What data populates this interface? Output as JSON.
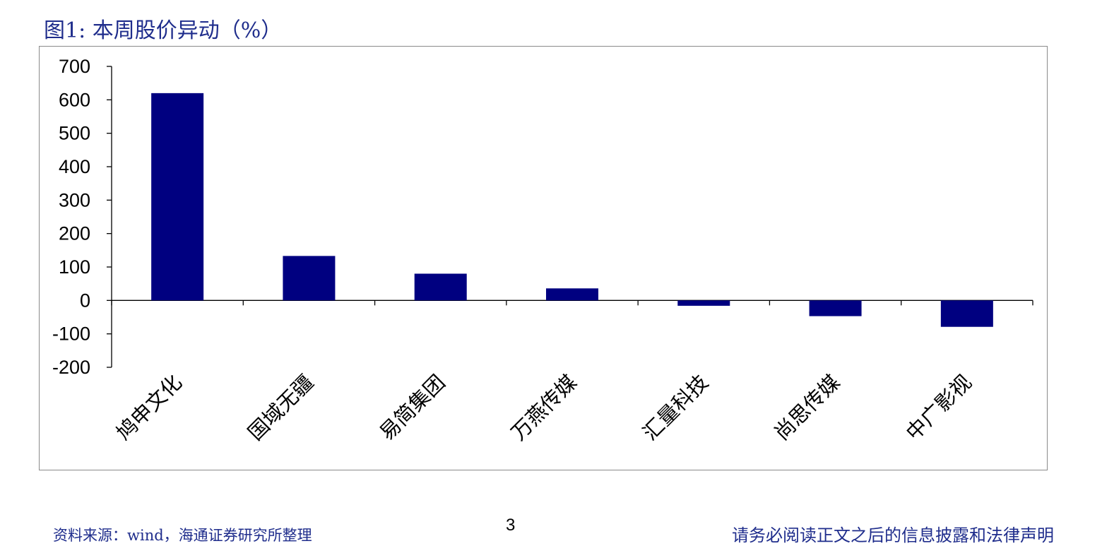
{
  "header": {
    "figure_title": "图1:  本周股价异动（%）"
  },
  "footer": {
    "source": "资料来源：wind，海通证券研究所整理",
    "page_number": "3",
    "disclaimer": "请务必阅读正文之后的信息披露和法律声明"
  },
  "chart_data": {
    "type": "bar",
    "title": "",
    "xlabel": "",
    "ylabel": "",
    "categories": [
      "鸠申文化",
      "国域无疆",
      "易简集团",
      "万燕传媒",
      "汇量科技",
      "尚思传媒",
      "中广影视"
    ],
    "values": [
      620,
      133,
      80,
      36,
      -16,
      -47,
      -79
    ],
    "ylim": [
      -200,
      700
    ],
    "yticks": [
      700,
      600,
      500,
      400,
      300,
      200,
      100,
      0,
      -100,
      -200
    ],
    "ytick_labels": [
      "700",
      "600",
      "500",
      "400",
      "300",
      "200",
      "100",
      "0",
      "-100",
      "-200"
    ],
    "bar_color": "#000080",
    "grid": false,
    "legend": "none"
  }
}
